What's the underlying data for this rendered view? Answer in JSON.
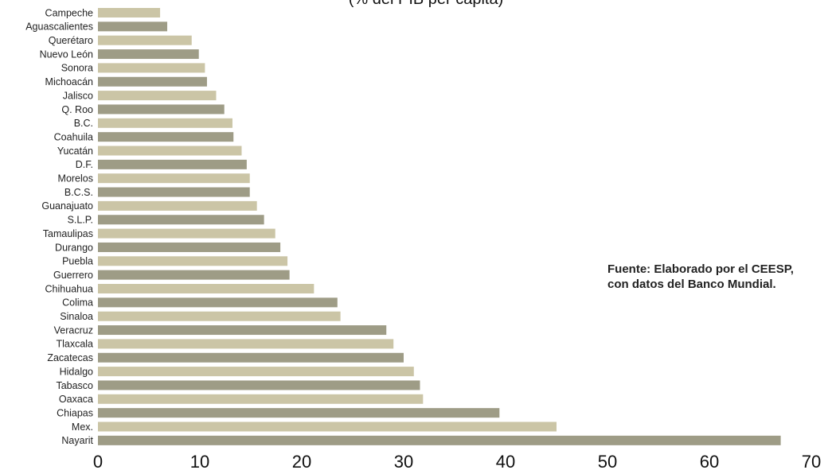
{
  "chart_data": {
    "type": "bar",
    "orientation": "horizontal",
    "title": "(% del PIB per cápita)",
    "source": [
      "Fuente: Elaborado por el CEESP,",
      "con datos del Banco Mundial."
    ],
    "categories": [
      "Campeche",
      "Aguascalientes",
      "Querétaro",
      "Nuevo León",
      "Sonora",
      "Michoacán",
      "Jalisco",
      "Q. Roo",
      "B.C.",
      "Coahuila",
      "Yucatán",
      "D.F.",
      "Morelos",
      "B.C.S.",
      "Guanajuato",
      "S.L.P.",
      "Tamaulipas",
      "Durango",
      "Puebla",
      "Guerrero",
      "Chihuahua",
      "Colima",
      "Sinaloa",
      "Veracruz",
      "Tlaxcala",
      "Zacatecas",
      "Hidalgo",
      "Tabasco",
      "Oaxaca",
      "Chiapas",
      "Mex.",
      "Nayarit"
    ],
    "values": [
      6.1,
      6.8,
      9.2,
      9.9,
      10.5,
      10.7,
      11.6,
      12.4,
      13.2,
      13.3,
      14.1,
      14.6,
      14.9,
      14.9,
      15.6,
      16.3,
      17.4,
      17.9,
      18.6,
      18.8,
      21.2,
      23.5,
      23.8,
      28.3,
      29.0,
      30.0,
      31.0,
      31.6,
      31.9,
      39.4,
      45.0,
      67.0
    ],
    "xlim": [
      0,
      70
    ],
    "xticks": [
      0,
      10,
      20,
      30,
      40,
      50,
      60,
      70
    ],
    "colors": [
      "#cbc5a6",
      "#9e9c86"
    ],
    "grid": false,
    "legend": "none"
  }
}
